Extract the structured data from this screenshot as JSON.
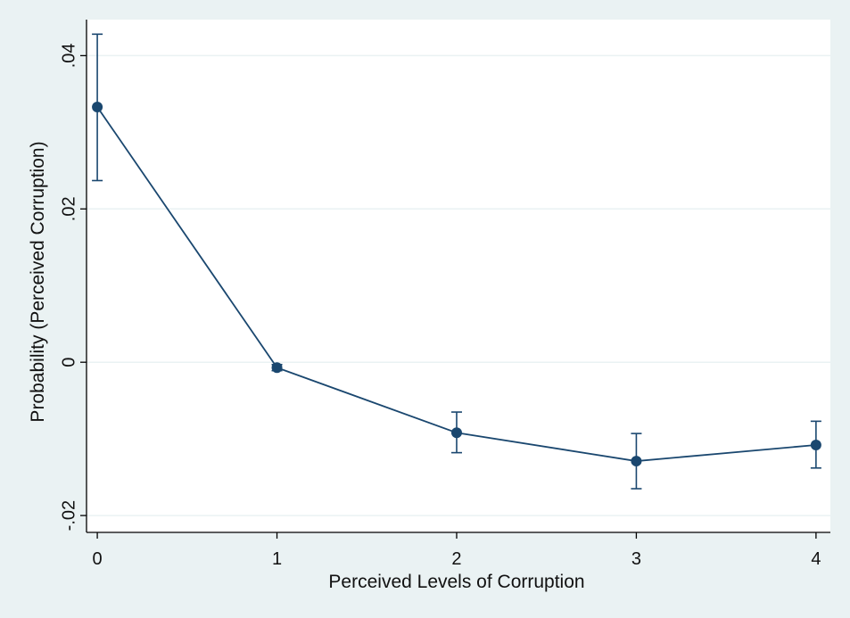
{
  "chart_data": {
    "type": "line",
    "title": "",
    "xlabel": "Perceived Levels of Corruption",
    "ylabel": "Probability (Perceived Corruption)",
    "x": [
      0,
      1,
      2,
      3,
      4
    ],
    "xticks": [
      "0",
      "1",
      "2",
      "3",
      "4"
    ],
    "yticks": [
      {
        "value": -0.02,
        "label": "-.02"
      },
      {
        "value": 0,
        "label": "0"
      },
      {
        "value": 0.02,
        "label": ".02"
      },
      {
        "value": 0.04,
        "label": ".04"
      }
    ],
    "xlim": [
      -0.06,
      4.08
    ],
    "ylim": [
      -0.0222,
      0.0447
    ],
    "grid": true,
    "series": [
      {
        "values": [
          0.0333,
          -0.0007,
          -0.0092,
          -0.0129,
          -0.0108
        ],
        "ci_lower": [
          0.0237,
          -0.0011,
          -0.0118,
          -0.0165,
          -0.0138
        ],
        "ci_upper": [
          0.0428,
          -0.0003,
          -0.0065,
          -0.0093,
          -0.0077
        ]
      }
    ],
    "colors": {
      "outer_background": "#eaf2f3",
      "plot_background": "#ffffff",
      "series": "#1a476f",
      "grid": "#eaf2f3",
      "axis": "#000000"
    }
  }
}
